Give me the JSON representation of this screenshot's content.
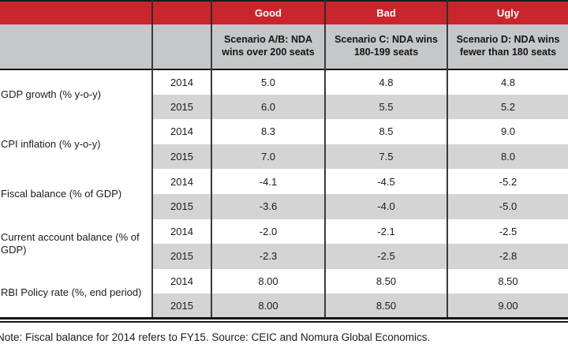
{
  "colors": {
    "header_red": "#c8262c",
    "header_gray": "#c6c7c8",
    "row_band_gray": "#d4d4d4",
    "rule_black": "#141414"
  },
  "table": {
    "quality_headers": [
      "Good",
      "Bad",
      "Ugly"
    ],
    "scenario_headers": [
      "Scenario A/B: NDA wins over 200 seats",
      "Scenario C: NDA wins 180-199 seats",
      "Scenario D: NDA wins fewer than 180 seats"
    ],
    "groups": [
      {
        "label": "GDP growth (% y-o-y)",
        "rows": [
          {
            "year": "2014",
            "values": [
              "5.0",
              "4.8",
              "4.8"
            ]
          },
          {
            "year": "2015",
            "values": [
              "6.0",
              "5.5",
              "5.2"
            ]
          }
        ]
      },
      {
        "label": "CPI inflation (% y-o-y)",
        "rows": [
          {
            "year": "2014",
            "values": [
              "8.3",
              "8.5",
              "9.0"
            ]
          },
          {
            "year": "2015",
            "values": [
              "7.0",
              "7.5",
              "8.0"
            ]
          }
        ]
      },
      {
        "label": "Fiscal balance (% of GDP)",
        "rows": [
          {
            "year": "2014",
            "values": [
              "-4.1",
              "-4.5",
              "-5.2"
            ]
          },
          {
            "year": "2015",
            "values": [
              "-3.6",
              "-4.0",
              "-5.0"
            ]
          }
        ]
      },
      {
        "label": "Current account balance (% of GDP)",
        "rows": [
          {
            "year": "2014",
            "values": [
              "-2.0",
              "-2.1",
              "-2.5"
            ]
          },
          {
            "year": "2015",
            "values": [
              "-2.3",
              "-2.5",
              "-2.8"
            ]
          }
        ]
      },
      {
        "label": "RBI Policy rate (%, end period)",
        "rows": [
          {
            "year": "2014",
            "values": [
              "8.00",
              "8.50",
              "8.50"
            ]
          },
          {
            "year": "2015",
            "values": [
              "8.00",
              "8.50",
              "9.00"
            ]
          }
        ]
      }
    ]
  },
  "note": "Note: Fiscal balance for 2014 refers to FY15. Source: CEIC and Nomura Global Economics."
}
